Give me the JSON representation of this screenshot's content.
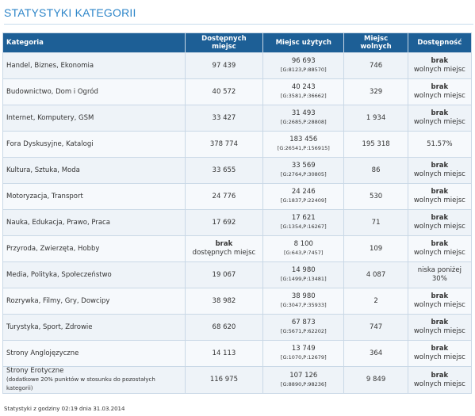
{
  "title": "STATYSTYKI KATEGORII",
  "columns": [
    "Kategoria",
    "Dostępnych miejsc",
    "Miejsc użytych",
    "Miejsc wolnych",
    "Dostępność"
  ],
  "rows": [
    {
      "category": "Handel, Biznes, Ekonomia",
      "note": "",
      "available": "97 439",
      "available_bold": "",
      "used": "96 693",
      "used_detail": "[G:8123,P:88570]",
      "free": "746",
      "status_bold": "brak",
      "status": "wolnych miejsc"
    },
    {
      "category": "Budownictwo, Dom i Ogród",
      "note": "",
      "available": "40 572",
      "available_bold": "",
      "used": "40 243",
      "used_detail": "[G:3581,P:36662]",
      "free": "329",
      "status_bold": "brak",
      "status": "wolnych miejsc"
    },
    {
      "category": "Internet, Komputery, GSM",
      "note": "",
      "available": "33 427",
      "available_bold": "",
      "used": "31 493",
      "used_detail": "[G:2685,P:28808]",
      "free": "1 934",
      "status_bold": "brak",
      "status": "wolnych miejsc"
    },
    {
      "category": "Fora Dyskusyjne, Katalogi",
      "note": "",
      "available": "378 774",
      "available_bold": "",
      "used": "183 456",
      "used_detail": "[G:26541,P:156915]",
      "free": "195 318",
      "status_bold": "",
      "status": "51.57%"
    },
    {
      "category": "Kultura, Sztuka, Moda",
      "note": "",
      "available": "33 655",
      "available_bold": "",
      "used": "33 569",
      "used_detail": "[G:2764,P:30805]",
      "free": "86",
      "status_bold": "brak",
      "status": "wolnych miejsc"
    },
    {
      "category": "Motoryzacja, Transport",
      "note": "",
      "available": "24 776",
      "available_bold": "",
      "used": "24 246",
      "used_detail": "[G:1837,P:22409]",
      "free": "530",
      "status_bold": "brak",
      "status": "wolnych miejsc"
    },
    {
      "category": "Nauka, Edukacja, Prawo, Praca",
      "note": "",
      "available": "17 692",
      "available_bold": "",
      "used": "17 621",
      "used_detail": "[G:1354,P:16267]",
      "free": "71",
      "status_bold": "brak",
      "status": "wolnych miejsc"
    },
    {
      "category": "Przyroda, Zwierzęta, Hobby",
      "note": "",
      "available": "dostępnych miejsc",
      "available_bold": "brak",
      "used": "8 100",
      "used_detail": "[G:643,P:7457]",
      "free": "109",
      "status_bold": "brak",
      "status": "wolnych miejsc"
    },
    {
      "category": "Media, Polityka, Społeczeństwo",
      "note": "",
      "available": "19 067",
      "available_bold": "",
      "used": "14 980",
      "used_detail": "[G:1499,P:13481]",
      "free": "4 087",
      "status_bold": "",
      "status": "niska poniżej 30%"
    },
    {
      "category": "Rozrywka, Filmy, Gry, Dowcipy",
      "note": "",
      "available": "38 982",
      "available_bold": "",
      "used": "38 980",
      "used_detail": "[G:3047,P:35933]",
      "free": "2",
      "status_bold": "brak",
      "status": "wolnych miejsc"
    },
    {
      "category": "Turystyka, Sport, Zdrowie",
      "note": "",
      "available": "68 620",
      "available_bold": "",
      "used": "67 873",
      "used_detail": "[G:5671,P:62202]",
      "free": "747",
      "status_bold": "brak",
      "status": "wolnych miejsc"
    },
    {
      "category": "Strony Anglojęzyczne",
      "note": "",
      "available": "14 113",
      "available_bold": "",
      "used": "13 749",
      "used_detail": "[G:1070,P:12679]",
      "free": "364",
      "status_bold": "brak",
      "status": "wolnych miejsc"
    },
    {
      "category": "Strony Erotyczne",
      "note": "(dodatkowe 20% punktów w stosunku do pozostałych kategorii)",
      "available": "116 975",
      "available_bold": "",
      "used": "107 126",
      "used_detail": "[G:8890,P:98236]",
      "free": "9 849",
      "status_bold": "brak",
      "status": "wolnych miejsc"
    }
  ],
  "footer": "Statystyki z godziny 02:19 dnia 31.03.2014",
  "colors": {
    "title": "#2e86c9",
    "header_bg": "#1d5f96",
    "row_bg": "#eef3f8",
    "border": "#c9d8e6"
  }
}
